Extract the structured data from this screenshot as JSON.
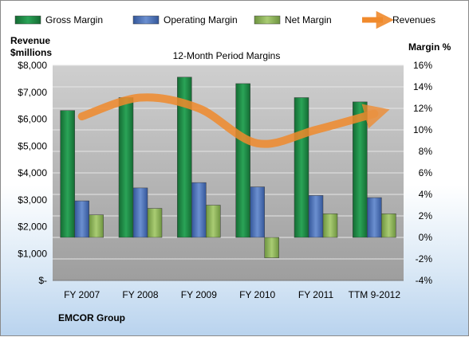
{
  "chart_data": {
    "type": "bar",
    "title": "12-Month Period Margins",
    "categories": [
      "FY 2007",
      "FY 2008",
      "FY 2009",
      "FY 2010",
      "FY 2011",
      "TTM 9-2012"
    ],
    "series": [
      {
        "name": "Gross Margin",
        "axis": "right",
        "values": [
          11.8,
          13.0,
          14.9,
          14.3,
          13.0,
          12.6
        ],
        "color": "#1e8c45"
      },
      {
        "name": "Operating Margin",
        "axis": "right",
        "values": [
          3.4,
          4.6,
          5.1,
          4.7,
          3.9,
          3.7
        ],
        "color": "#4a6fb5"
      },
      {
        "name": "Net Margin",
        "axis": "right",
        "values": [
          2.1,
          2.7,
          3.0,
          -1.9,
          2.2,
          2.2
        ],
        "color": "#8fb55a"
      },
      {
        "name": "Revenues",
        "axis": "left",
        "type": "line",
        "values": [
          6100,
          6800,
          6400,
          5100,
          5600,
          6200
        ],
        "color": "#f08a2c"
      }
    ],
    "y_left": {
      "label_line1": "Revenue",
      "label_line2": "$millions",
      "range": [
        0,
        8000
      ],
      "ticks": [
        "$-",
        "$1,000",
        "$2,000",
        "$3,000",
        "$4,000",
        "$5,000",
        "$6,000",
        "$7,000",
        "$8,000"
      ]
    },
    "y_right": {
      "label": "Margin %",
      "range": [
        -4,
        16
      ],
      "ticks": [
        "-4%",
        "-2%",
        "0%",
        "2%",
        "4%",
        "6%",
        "8%",
        "10%",
        "12%",
        "14%",
        "16%"
      ]
    },
    "legend_position": "top",
    "grid": true
  },
  "footer": {
    "company": "EMCOR Group"
  }
}
